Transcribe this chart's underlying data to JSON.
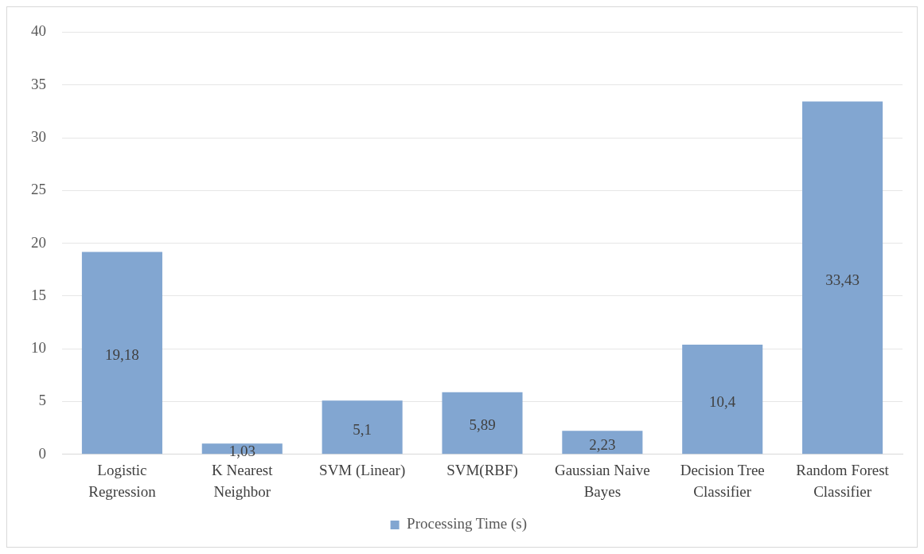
{
  "chart_data": {
    "type": "bar",
    "categories": [
      "Logistic Regression",
      "K Nearest Neighbor",
      "SVM (Linear)",
      "SVM(RBF)",
      "Gaussian Naive Bayes",
      "Decision Tree Classifier",
      "Random Forest Classifier"
    ],
    "series": [
      {
        "name": "Processing Time (s)",
        "color": "#82a6d1",
        "values": [
          19.18,
          1.03,
          5.1,
          5.89,
          2.23,
          10.4,
          33.43
        ],
        "value_labels": [
          "19,18",
          "1,03",
          "5,1",
          "5,89",
          "2,23",
          "10,4",
          "33,43"
        ]
      }
    ],
    "ylim": [
      0,
      40
    ],
    "yticks": [
      0,
      5,
      10,
      15,
      20,
      25,
      30,
      35,
      40
    ],
    "grid": "y",
    "legend": "bottom"
  }
}
